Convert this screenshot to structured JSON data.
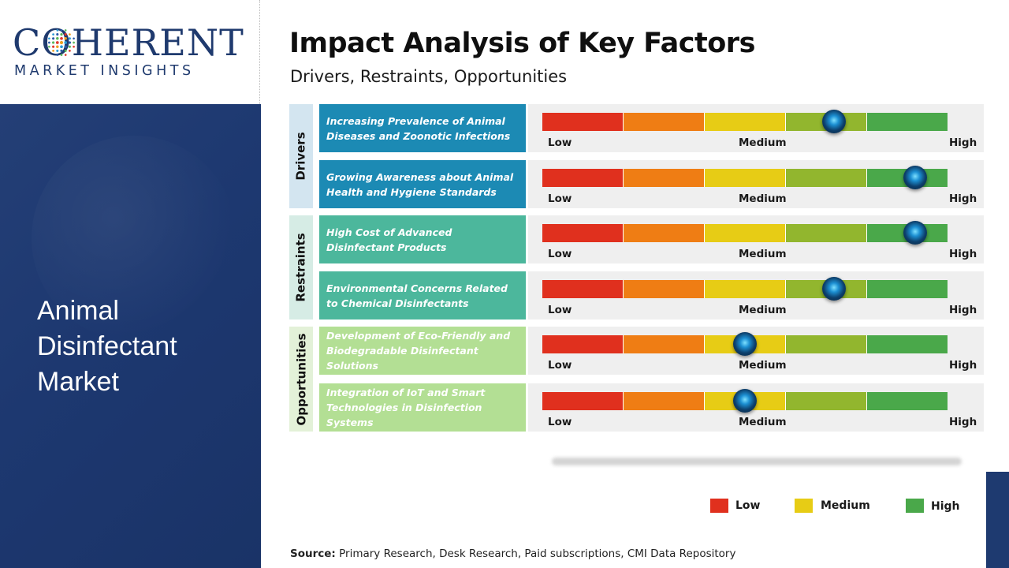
{
  "logo": {
    "main": "COHERENT",
    "sub": "MARKET INSIGHTS"
  },
  "market": {
    "line1": "Animal",
    "line2": "Disinfectant",
    "line3": "Market"
  },
  "title": "Impact Analysis of Key Factors",
  "subtitle": "Drivers, Restraints, Opportunities",
  "scale_labels": {
    "low": "Low",
    "medium": "Medium",
    "high": "High"
  },
  "colors": {
    "drivers": "#1c8ab4",
    "restraints": "#4cb79c",
    "opportunities": "#b3df94",
    "scale": [
      "#e0301e",
      "#ef7d14",
      "#e7cc15",
      "#92b62e",
      "#4aa84a"
    ]
  },
  "chart_data": {
    "type": "table",
    "scale": {
      "min": 0,
      "max": 1,
      "labels": [
        "Low",
        "Medium",
        "High"
      ]
    },
    "categories": [
      {
        "name": "Drivers",
        "factors": [
          {
            "label": "Increasing Prevalence of Animal Diseases and Zoonotic Infections",
            "impact": 0.72
          },
          {
            "label": "Growing Awareness about Animal Health and Hygiene Standards",
            "impact": 0.92
          }
        ]
      },
      {
        "name": "Restraints",
        "factors": [
          {
            "label": "High Cost of Advanced Disinfectant Products",
            "impact": 0.92
          },
          {
            "label": "Environmental Concerns Related to Chemical Disinfectants",
            "impact": 0.72
          }
        ]
      },
      {
        "name": "Opportunities",
        "factors": [
          {
            "label": "Development of Eco-Friendly and Biodegradable Disinfectant Solutions",
            "impact": 0.5
          },
          {
            "label": "Integration of IoT and Smart Technologies in Disinfection Systems",
            "impact": 0.5
          }
        ]
      }
    ],
    "legend": [
      {
        "label": "Low",
        "color": "#e0301e"
      },
      {
        "label": "Medium",
        "color": "#e7cc15"
      },
      {
        "label": "High",
        "color": "#4aa84a"
      }
    ]
  },
  "source": {
    "label": "Source:",
    "text": " Primary Research, Desk Research, Paid subscriptions, CMI Data Repository"
  }
}
